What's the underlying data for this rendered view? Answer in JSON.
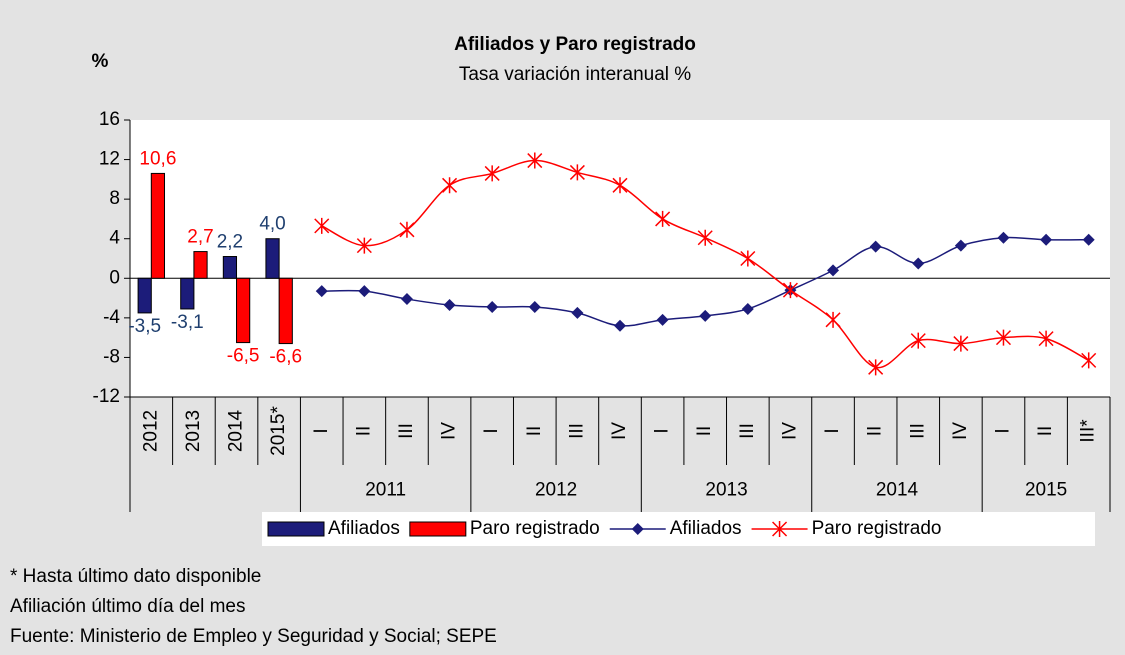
{
  "chart_data": {
    "type": "bar_line",
    "title": "Afiliados y Paro registrado",
    "subtitle": "Tasa variación interanual %",
    "y_label": "%",
    "categories": [
      "2012",
      "2013",
      "2014",
      "2015*",
      "I",
      "II",
      "III",
      "IV",
      "I",
      "II",
      "III",
      "IV",
      "I",
      "II",
      "III",
      "IV",
      "I",
      "II",
      "III",
      "IV",
      "I",
      "II",
      "III*"
    ],
    "x_groups": [
      {
        "label": null,
        "count": 4
      },
      {
        "label": "2011",
        "count": 4
      },
      {
        "label": "2012",
        "count": 4
      },
      {
        "label": "2013",
        "count": 4
      },
      {
        "label": "2014",
        "count": 4
      },
      {
        "label": "2015",
        "count": 3
      }
    ],
    "series": [
      {
        "name": "Afiliados",
        "type": "bar",
        "color": "#1c1c7a",
        "label_color": "#1f3f6f",
        "values": [
          -3.5,
          -3.1,
          2.2,
          4.0,
          null,
          null,
          null,
          null,
          null,
          null,
          null,
          null,
          null,
          null,
          null,
          null,
          null,
          null,
          null,
          null,
          null,
          null,
          null
        ],
        "value_labels": [
          "-3,5",
          "-3,1",
          "2,2",
          "4,0",
          null,
          null,
          null,
          null,
          null,
          null,
          null,
          null,
          null,
          null,
          null,
          null,
          null,
          null,
          null,
          null,
          null,
          null,
          null
        ]
      },
      {
        "name": "Paro registrado",
        "type": "bar",
        "color": "#ff0000",
        "label_color": "#ff0000",
        "values": [
          10.6,
          2.7,
          -6.5,
          -6.6,
          null,
          null,
          null,
          null,
          null,
          null,
          null,
          null,
          null,
          null,
          null,
          null,
          null,
          null,
          null,
          null,
          null,
          null,
          null
        ],
        "value_labels": [
          "10,6",
          "2,7",
          "-6,5",
          "-6,6",
          null,
          null,
          null,
          null,
          null,
          null,
          null,
          null,
          null,
          null,
          null,
          null,
          null,
          null,
          null,
          null,
          null,
          null,
          null
        ]
      },
      {
        "name": "Afiliados",
        "type": "line",
        "marker": "diamond",
        "color": "#1c1c7a",
        "values": [
          null,
          null,
          null,
          null,
          -1.3,
          -1.3,
          -2.1,
          -2.7,
          -2.9,
          -2.9,
          -3.5,
          -4.8,
          -4.2,
          -3.8,
          -3.1,
          -1.2,
          0.8,
          3.2,
          1.5,
          3.3,
          4.1,
          3.9,
          3.9
        ]
      },
      {
        "name": "Paro registrado",
        "type": "line",
        "marker": "asterisk",
        "color": "#ff0000",
        "values": [
          null,
          null,
          null,
          null,
          5.3,
          3.3,
          4.9,
          9.4,
          10.6,
          11.9,
          10.7,
          9.4,
          6.0,
          4.1,
          2.0,
          -1.2,
          -4.2,
          -9.0,
          -6.3,
          -6.6,
          -6.0,
          -6.1,
          -8.3
        ]
      }
    ],
    "ylim": [
      -12,
      16
    ],
    "yticks": [
      -12,
      -8,
      -4,
      0,
      4,
      8,
      12,
      16
    ],
    "legend": "bottom",
    "notes": [
      "* Hasta último dato disponible",
      "Afiliación último día del mes",
      "Fuente: Ministerio de Empleo y Seguridad y Social; SEPE"
    ]
  }
}
